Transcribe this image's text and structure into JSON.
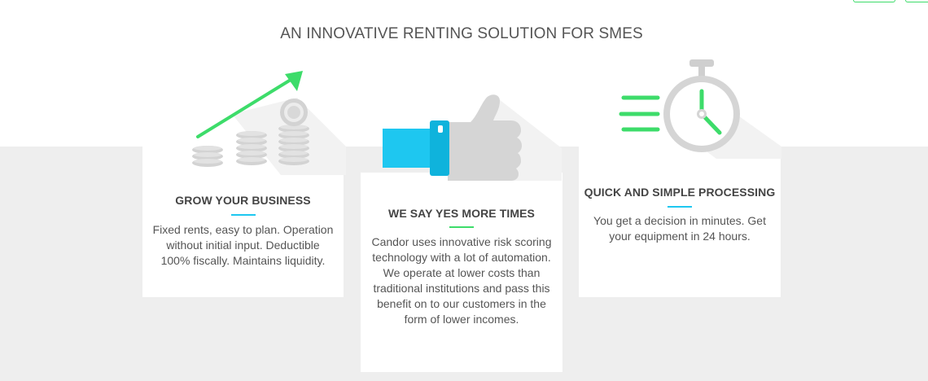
{
  "section": {
    "title": "AN INNOVATIVE RENTING SOLUTION FOR SMES"
  },
  "colors": {
    "green_accent": "#3ddc6a",
    "blue_accent": "#1ec7f0",
    "icon_grey": "#d5d5d5",
    "band_grey": "#eeeeee"
  },
  "features": [
    {
      "icon": "growth-coins-icon",
      "title": "GROW YOUR BUSINESS",
      "underline_color": "#1ec7f0",
      "description": "Fixed rents, easy to plan. Operation without initial input. Deductible 100% fiscally. Maintains liquidity."
    },
    {
      "icon": "thumbs-up-icon",
      "title": "WE SAY YES MORE TIMES",
      "underline_color": "#3ddc6a",
      "description": "Candor uses innovative risk scoring technology with a lot of automation. We operate at lower costs than traditional institutions and pass this benefit on to our customers in the form of lower incomes."
    },
    {
      "icon": "stopwatch-icon",
      "title": "QUICK AND SIMPLE PROCESSING",
      "underline_color": "#1ec7f0",
      "description": "You get a decision in minutes. Get your equipment in 24 hours."
    }
  ]
}
